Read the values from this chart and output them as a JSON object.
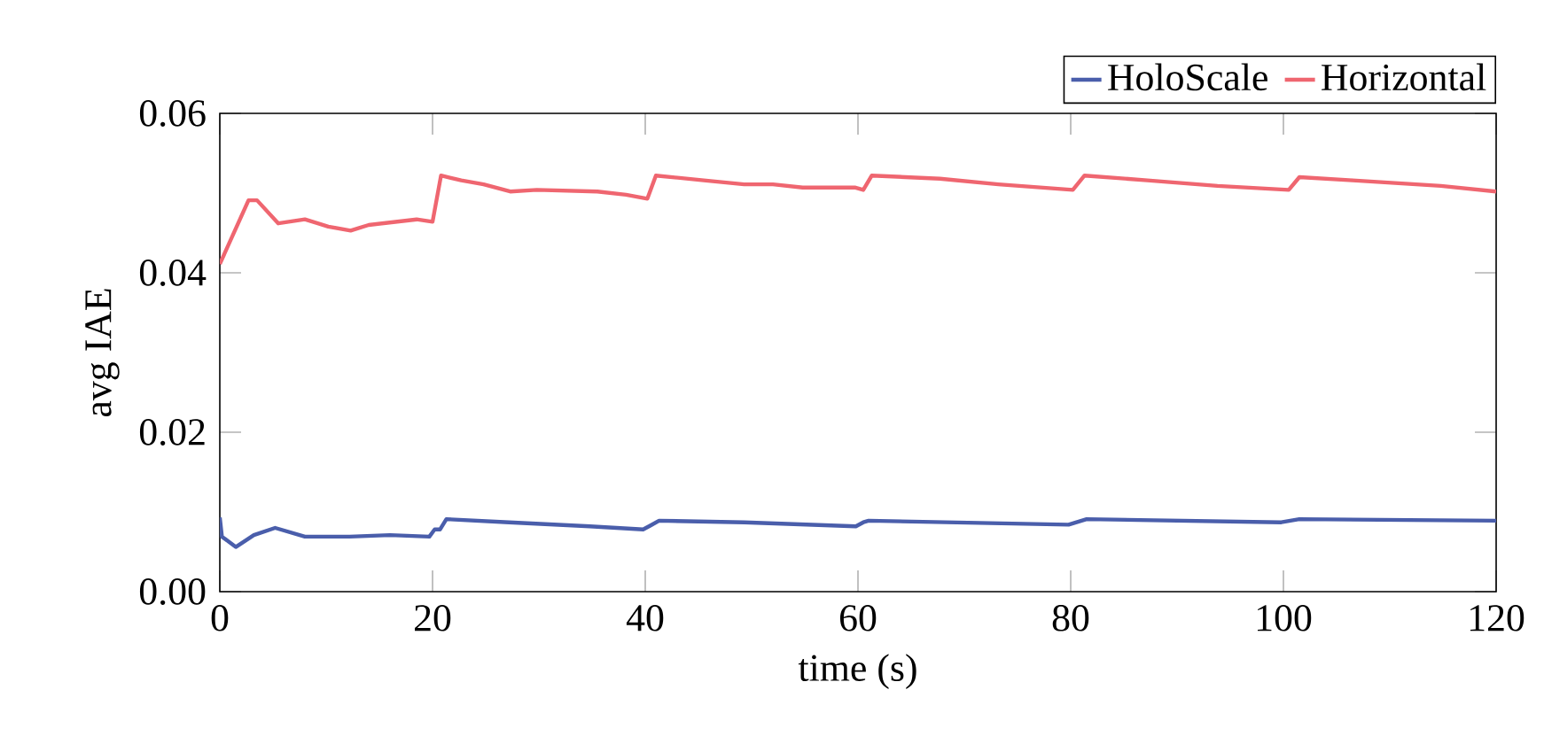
{
  "chart_data": {
    "type": "line",
    "xlabel": "time (s)",
    "ylabel": "avg IAE",
    "xlim": [
      0,
      120
    ],
    "ylim": [
      0,
      0.06
    ],
    "xticks": [
      0,
      20,
      40,
      60,
      80,
      100,
      120
    ],
    "yticks": [
      {
        "value": 0,
        "label": "0.00"
      },
      {
        "value": 0.02,
        "label": "0.02"
      },
      {
        "value": 0.04,
        "label": "0.04"
      },
      {
        "value": 0.06,
        "label": "0.06"
      }
    ],
    "grid": false,
    "legend": "top right",
    "marker": "none",
    "line_style": "solid",
    "series": [
      {
        "name": "HoloScale",
        "color": "#4a5eab",
        "x": [
          0,
          0.2,
          1.5,
          3.2,
          5.2,
          8,
          12.2,
          16,
          19.7,
          20.2,
          20.7,
          21.3,
          27.2,
          34.8,
          39.8,
          40.5,
          41.3,
          49.3,
          59.8,
          60.5,
          61,
          79.8,
          81.5,
          99.8,
          101.5,
          120
        ],
        "values": [
          0.0093,
          0.0069,
          0.0056,
          0.0071,
          0.008,
          0.0069,
          0.0069,
          0.0071,
          0.0069,
          0.0078,
          0.0078,
          0.0091,
          0.0087,
          0.0082,
          0.0078,
          0.0083,
          0.0089,
          0.0087,
          0.0082,
          0.0087,
          0.0089,
          0.0084,
          0.0091,
          0.0087,
          0.0091,
          0.0089
        ]
      },
      {
        "name": "Horizontal",
        "color": "#ef6670",
        "x": [
          0,
          2.7,
          3.5,
          5.5,
          8,
          10.2,
          12.3,
          14,
          18.5,
          20,
          20.8,
          22.7,
          24.8,
          27.3,
          29.8,
          35.5,
          38.2,
          40.2,
          41,
          45.5,
          49.3,
          52,
          54.8,
          59.7,
          60.5,
          61.3,
          67.7,
          73.2,
          80.2,
          81.3,
          87.2,
          93.8,
          100.5,
          101.5,
          106.5,
          114.8,
          120
        ],
        "values": [
          0.0411,
          0.0491,
          0.0491,
          0.0462,
          0.0467,
          0.0458,
          0.0453,
          0.046,
          0.0467,
          0.0464,
          0.0522,
          0.0516,
          0.0511,
          0.0502,
          0.0504,
          0.0502,
          0.0498,
          0.0493,
          0.0522,
          0.0516,
          0.0511,
          0.0511,
          0.0507,
          0.0507,
          0.0504,
          0.0522,
          0.0518,
          0.0511,
          0.0504,
          0.0522,
          0.0516,
          0.0509,
          0.0504,
          0.052,
          0.0516,
          0.0509,
          0.0502
        ]
      }
    ]
  }
}
